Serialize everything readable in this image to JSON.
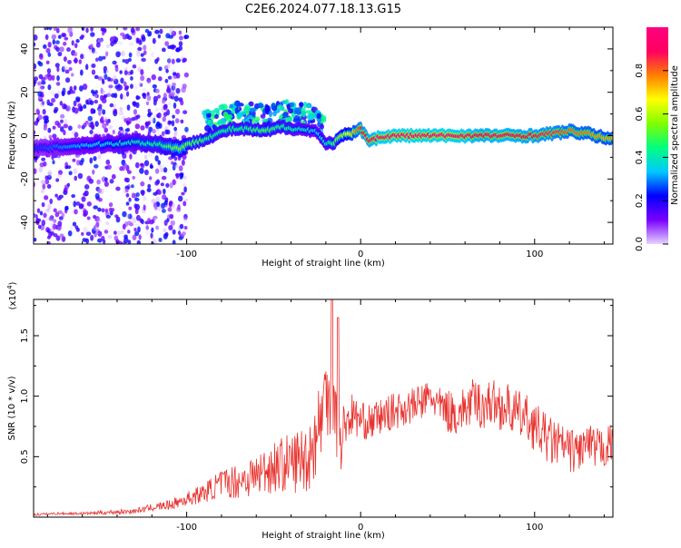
{
  "title": "C2E6.2024.077.18.13.G15",
  "chart_data": [
    {
      "type": "heatmap",
      "xlabel": "Height of straight line (km)",
      "ylabel": "Frequency (Hz)",
      "xlim": [
        -188,
        145
      ],
      "ylim": [
        -50,
        50
      ],
      "xticks": [
        -100,
        0,
        100
      ],
      "xtick_labels": [
        "-100",
        "0",
        "100"
      ],
      "yticks": [
        -40,
        -20,
        0,
        20,
        40
      ],
      "ytick_labels": [
        "-40",
        "-20",
        "0",
        "20",
        "40"
      ],
      "colorbar": {
        "label": "Normalized spectral amplitude",
        "range": [
          0.0,
          1.0
        ],
        "ticks": [
          0.0,
          0.2,
          0.4,
          0.6,
          0.8
        ],
        "tick_labels": [
          "0.0",
          "0.2",
          "0.4",
          "0.6",
          "0.8"
        ],
        "colormap": [
          "#e6d3ff",
          "#7a00ff",
          "#0000ff",
          "#00c8ff",
          "#00ff80",
          "#80ff00",
          "#ffff00",
          "#ff8000",
          "#ff0060",
          "#ff0080"
        ]
      },
      "ridge": {
        "x": [
          -185,
          -170,
          -150,
          -130,
          -115,
          -105,
          -95,
          -85,
          -75,
          -65,
          -55,
          -45,
          -35,
          -25,
          -20,
          -15,
          -10,
          -5,
          0,
          5,
          10,
          20,
          30,
          40,
          50,
          60,
          70,
          80,
          90,
          100,
          110,
          120,
          130,
          140
        ],
        "freq": [
          -6,
          -5,
          -4,
          -3,
          -4,
          -6,
          -3,
          0,
          3,
          3,
          2,
          4,
          3,
          2,
          -4,
          -3,
          0,
          1,
          3,
          -2,
          -1,
          0,
          0,
          0,
          0,
          0,
          0,
          0,
          0,
          0,
          1,
          2,
          1,
          -1
        ],
        "amplitude": [
          0.25,
          0.3,
          0.35,
          0.4,
          0.45,
          0.55,
          0.5,
          0.45,
          0.45,
          0.45,
          0.5,
          0.45,
          0.4,
          0.35,
          0.4,
          0.5,
          0.6,
          0.7,
          0.85,
          0.9,
          0.95,
          0.98,
          1.0,
          0.98,
          1.0,
          0.95,
          0.9,
          0.92,
          0.9,
          0.88,
          0.85,
          0.8,
          0.78,
          0.75
        ]
      },
      "grid": false
    },
    {
      "type": "line",
      "xlabel": "Height of straight line (km)",
      "ylabel": "SNR (10 * v/v)",
      "y_multiplier": "(x10",
      "y_multiplier_exp": "4",
      "y_multiplier_close": ")",
      "xlim": [
        -188,
        145
      ],
      "ylim": [
        0,
        1.8
      ],
      "xticks": [
        -100,
        0,
        100
      ],
      "xtick_labels": [
        "-100",
        "0",
        "100"
      ],
      "yticks": [
        0.5,
        1.0,
        1.5
      ],
      "ytick_labels": [
        "0.5",
        "1.0",
        "1.5"
      ],
      "color": "#e8322e",
      "series": [
        {
          "x": [
            -188,
            -175,
            -160,
            -145,
            -130,
            -120,
            -110,
            -100,
            -90,
            -80,
            -70,
            -60,
            -50,
            -40,
            -30,
            -25,
            -20,
            -17,
            -15,
            -12,
            -10,
            -5,
            0,
            5,
            10,
            15,
            20,
            25,
            30,
            35,
            40,
            45,
            50,
            55,
            60,
            65,
            70,
            75,
            80,
            85,
            90,
            95,
            100,
            105,
            110,
            115,
            120,
            125,
            130,
            135,
            140,
            145
          ],
          "values": [
            0.02,
            0.03,
            0.03,
            0.04,
            0.05,
            0.08,
            0.1,
            0.15,
            0.2,
            0.28,
            0.3,
            0.35,
            0.42,
            0.45,
            0.5,
            0.7,
            1.0,
            1.2,
            1.05,
            0.55,
            0.75,
            0.85,
            0.8,
            0.78,
            0.82,
            0.85,
            0.88,
            0.9,
            0.92,
            0.95,
            1.0,
            0.92,
            0.88,
            0.85,
            0.9,
            0.95,
            0.92,
            0.95,
            0.92,
            0.9,
            0.85,
            0.82,
            0.75,
            0.68,
            0.62,
            0.6,
            0.55,
            0.55,
            0.6,
            0.55,
            0.58,
            0.6
          ],
          "spread": [
            0.01,
            0.01,
            0.01,
            0.02,
            0.02,
            0.03,
            0.04,
            0.06,
            0.08,
            0.12,
            0.15,
            0.18,
            0.22,
            0.25,
            0.3,
            0.35,
            0.4,
            0.5,
            0.45,
            0.3,
            0.2,
            0.18,
            0.15,
            0.15,
            0.15,
            0.15,
            0.15,
            0.15,
            0.15,
            0.15,
            0.15,
            0.15,
            0.18,
            0.18,
            0.18,
            0.2,
            0.2,
            0.2,
            0.2,
            0.2,
            0.2,
            0.2,
            0.2,
            0.2,
            0.2,
            0.18,
            0.18,
            0.18,
            0.18,
            0.18,
            0.18,
            0.18
          ]
        }
      ],
      "grid": false
    }
  ]
}
